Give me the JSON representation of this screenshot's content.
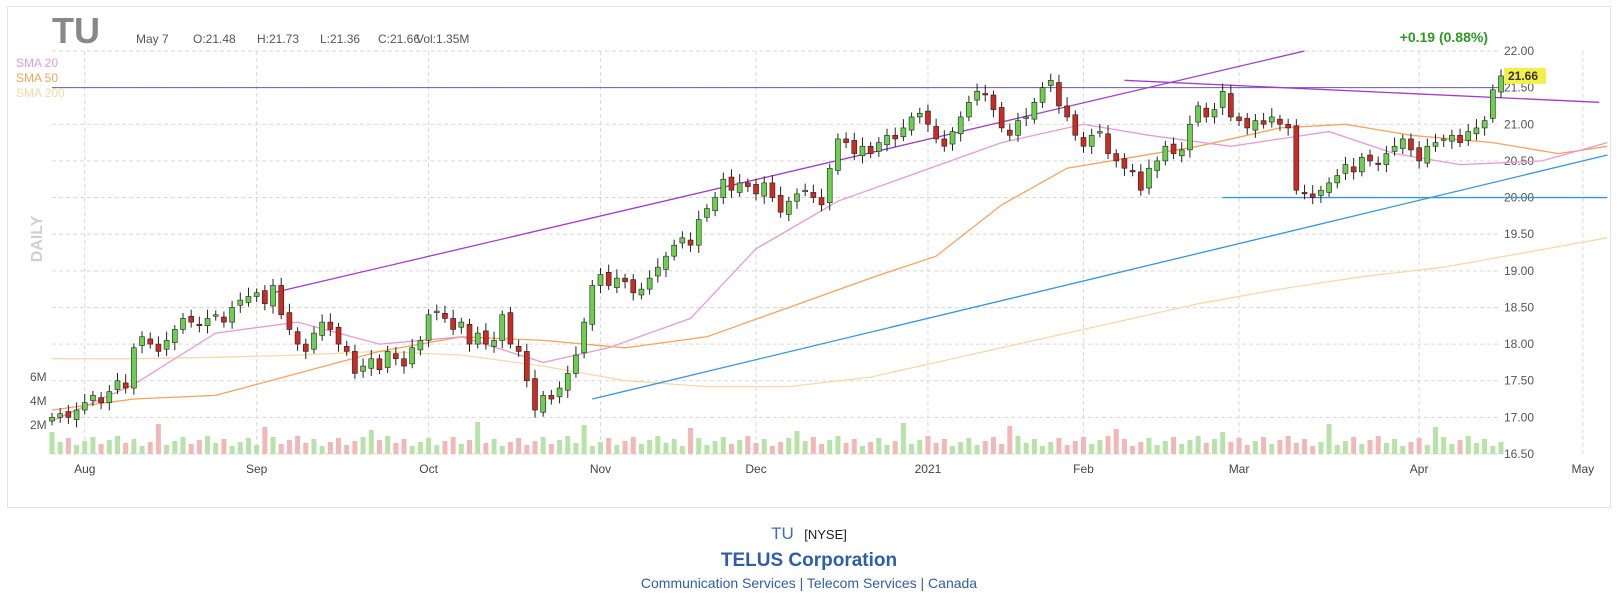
{
  "header": {
    "ticker": "TU",
    "date": "May 7",
    "open": "O:21.48",
    "high": "H:21.73",
    "low": "L:21.36",
    "close": "C:21.66",
    "volume": "Vol:1.35M",
    "change": "+0.19 (0.88%)",
    "last_price_tag": "21.66",
    "period_label": "DAILY"
  },
  "legend": [
    {
      "name": "SMA 20",
      "color": "#e69ad6"
    },
    {
      "name": "SMA 50",
      "color": "#f4a45c"
    },
    {
      "name": "SMA 200",
      "color": "#f6d9a8"
    }
  ],
  "colors": {
    "up": "#6bd04f",
    "down": "#cc2b24",
    "vol_up": "#b7e3a8",
    "vol_down": "#f2b8b8",
    "trend_purple": "#a03bc8",
    "trend_blue": "#3497d9",
    "grid": "#d9d9d9",
    "change_green": "#2c9a20",
    "price_tag_bg": "#f4f04a"
  },
  "chart_data": {
    "type": "candlestick",
    "ylim": [
      16.5,
      22.0
    ],
    "y_ticks": [
      "22.00",
      "21.50",
      "21.00",
      "20.50",
      "20.00",
      "19.50",
      "19.00",
      "18.50",
      "18.00",
      "17.50",
      "17.00",
      "16.50"
    ],
    "volume_ticks": [
      "6M",
      "4M",
      "2M"
    ],
    "x_labels": [
      {
        "label": "Aug",
        "i": 4
      },
      {
        "label": "Sep",
        "i": 25
      },
      {
        "label": "Oct",
        "i": 46
      },
      {
        "label": "Nov",
        "i": 67
      },
      {
        "label": "Dec",
        "i": 86
      },
      {
        "label": "2021",
        "i": 107
      },
      {
        "label": "Feb",
        "i": 126
      },
      {
        "label": "Mar",
        "i": 145
      },
      {
        "label": "Apr",
        "i": 167
      },
      {
        "label": "May",
        "i": 187
      }
    ],
    "closes": [
      17.0,
      17.05,
      17.0,
      17.1,
      17.2,
      17.3,
      17.2,
      17.35,
      17.5,
      17.4,
      17.95,
      18.1,
      18.0,
      17.9,
      18.05,
      18.2,
      18.35,
      18.3,
      18.25,
      18.35,
      18.4,
      18.3,
      18.5,
      18.6,
      18.65,
      18.7,
      18.55,
      18.8,
      18.4,
      18.2,
      18.0,
      17.9,
      18.15,
      18.3,
      18.2,
      18.0,
      17.9,
      17.6,
      17.7,
      17.8,
      17.65,
      17.9,
      17.8,
      17.7,
      17.95,
      18.05,
      18.4,
      18.45,
      18.35,
      18.2,
      18.3,
      18.0,
      18.15,
      18.0,
      18.05,
      18.4,
      18.0,
      17.9,
      17.5,
      17.1,
      17.3,
      17.25,
      17.4,
      17.6,
      17.85,
      18.3,
      18.8,
      18.95,
      18.8,
      18.9,
      18.85,
      18.7,
      18.75,
      18.9,
      19.05,
      19.2,
      19.35,
      19.45,
      19.35,
      19.7,
      19.85,
      20.0,
      20.25,
      20.1,
      20.2,
      20.15,
      20.05,
      20.2,
      20.0,
      19.8,
      19.95,
      20.05,
      20.1,
      20.0,
      19.9,
      20.4,
      20.8,
      20.75,
      20.6,
      20.7,
      20.6,
      20.75,
      20.85,
      20.8,
      20.95,
      21.1,
      21.15,
      21.0,
      20.8,
      20.7,
      20.9,
      21.1,
      21.3,
      21.45,
      21.4,
      21.2,
      20.95,
      20.85,
      21.05,
      21.1,
      21.3,
      21.5,
      21.6,
      21.25,
      21.1,
      20.85,
      20.7,
      20.85,
      20.9,
      20.6,
      20.5,
      20.4,
      20.35,
      20.1,
      20.4,
      20.5,
      20.7,
      20.6,
      20.65,
      21.0,
      21.25,
      21.1,
      21.2,
      21.45,
      21.1,
      21.05,
      20.95,
      21.05,
      21.0,
      21.1,
      21.0,
      20.95,
      20.1,
      20.05,
      20.0,
      20.1,
      20.2,
      20.3,
      20.45,
      20.35,
      20.55,
      20.5,
      20.45,
      20.6,
      20.7,
      20.8,
      20.65,
      20.5,
      20.7,
      20.75,
      20.8,
      20.85,
      20.75,
      20.9,
      20.95,
      21.05,
      21.47,
      21.66
    ],
    "sma20_points": [
      [
        0,
        16.95
      ],
      [
        10,
        17.45
      ],
      [
        20,
        18.15
      ],
      [
        30,
        18.3
      ],
      [
        40,
        18.0
      ],
      [
        50,
        18.1
      ],
      [
        60,
        17.75
      ],
      [
        68,
        17.95
      ],
      [
        78,
        18.35
      ],
      [
        86,
        19.3
      ],
      [
        96,
        19.95
      ],
      [
        106,
        20.35
      ],
      [
        116,
        20.75
      ],
      [
        126,
        21.0
      ],
      [
        134,
        20.85
      ],
      [
        144,
        20.7
      ],
      [
        150,
        20.8
      ],
      [
        156,
        20.9
      ],
      [
        164,
        20.6
      ],
      [
        172,
        20.45
      ],
      [
        182,
        20.5
      ],
      [
        190,
        20.75
      ]
    ],
    "sma50_points": [
      [
        0,
        17.1
      ],
      [
        10,
        17.25
      ],
      [
        20,
        17.3
      ],
      [
        30,
        17.6
      ],
      [
        40,
        17.9
      ],
      [
        50,
        18.1
      ],
      [
        60,
        18.05
      ],
      [
        70,
        17.95
      ],
      [
        80,
        18.1
      ],
      [
        90,
        18.5
      ],
      [
        100,
        18.9
      ],
      [
        108,
        19.2
      ],
      [
        116,
        19.9
      ],
      [
        124,
        20.4
      ],
      [
        132,
        20.55
      ],
      [
        140,
        20.7
      ],
      [
        150,
        20.95
      ],
      [
        158,
        21.0
      ],
      [
        166,
        20.85
      ],
      [
        176,
        20.75
      ],
      [
        184,
        20.6
      ],
      [
        190,
        20.7
      ]
    ],
    "sma200_points": [
      [
        0,
        17.8
      ],
      [
        10,
        17.8
      ],
      [
        20,
        17.82
      ],
      [
        30,
        17.85
      ],
      [
        40,
        17.9
      ],
      [
        50,
        17.85
      ],
      [
        60,
        17.7
      ],
      [
        70,
        17.5
      ],
      [
        80,
        17.42
      ],
      [
        90,
        17.42
      ],
      [
        100,
        17.55
      ],
      [
        110,
        17.8
      ],
      [
        120,
        18.05
      ],
      [
        130,
        18.3
      ],
      [
        140,
        18.55
      ],
      [
        150,
        18.75
      ],
      [
        160,
        18.92
      ],
      [
        170,
        19.05
      ],
      [
        180,
        19.25
      ],
      [
        190,
        19.45
      ]
    ],
    "trendlines": [
      {
        "color": "trend_purple",
        "from": [
          27,
          18.7
        ],
        "to": [
          153,
          22.0
        ]
      },
      {
        "color": "trend_purple",
        "from": [
          131,
          21.6
        ],
        "to": [
          189,
          21.3
        ]
      },
      {
        "color": "trend_blue",
        "from": [
          66,
          17.25
        ],
        "to": [
          190,
          20.58
        ]
      },
      {
        "color": "trend_blue",
        "from": [
          143,
          20.0
        ],
        "to": [
          190,
          20.0
        ]
      }
    ],
    "horizontal_line": 21.5
  },
  "footer": {
    "ticker": "TU",
    "exchange": "[NYSE]",
    "company": "TELUS Corporation",
    "sector": "Communication Services",
    "industry": "Telecom Services",
    "country": "Canada",
    "separator": "|"
  }
}
